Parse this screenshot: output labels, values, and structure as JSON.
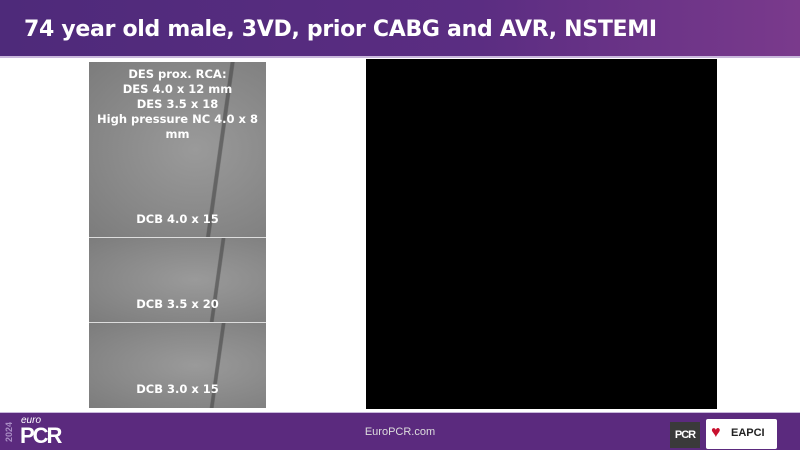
{
  "header": {
    "title": "74 year old male, 3VD, prior CABG and AVR, NSTEMI"
  },
  "angiogram": {
    "panels": [
      {
        "lines": [
          "DES prox. RCA:",
          "DES 4.0 x 12 mm",
          "DES 3.5 x 18",
          "High pressure NC 4.0 x 8",
          "mm"
        ],
        "label": "DCB 4.0 x 15"
      },
      {
        "label": "DCB 3.5 x 20"
      },
      {
        "label": "DCB 3.0 x 15"
      }
    ]
  },
  "footer": {
    "year": "2024",
    "brand_small": "euro",
    "brand": "PCR",
    "site": "EuroPCR.com",
    "partner_logo": "PCR",
    "partner2": "EAPCI"
  },
  "colors": {
    "header": "#5b2d82",
    "footer": "#5b2a7e"
  }
}
